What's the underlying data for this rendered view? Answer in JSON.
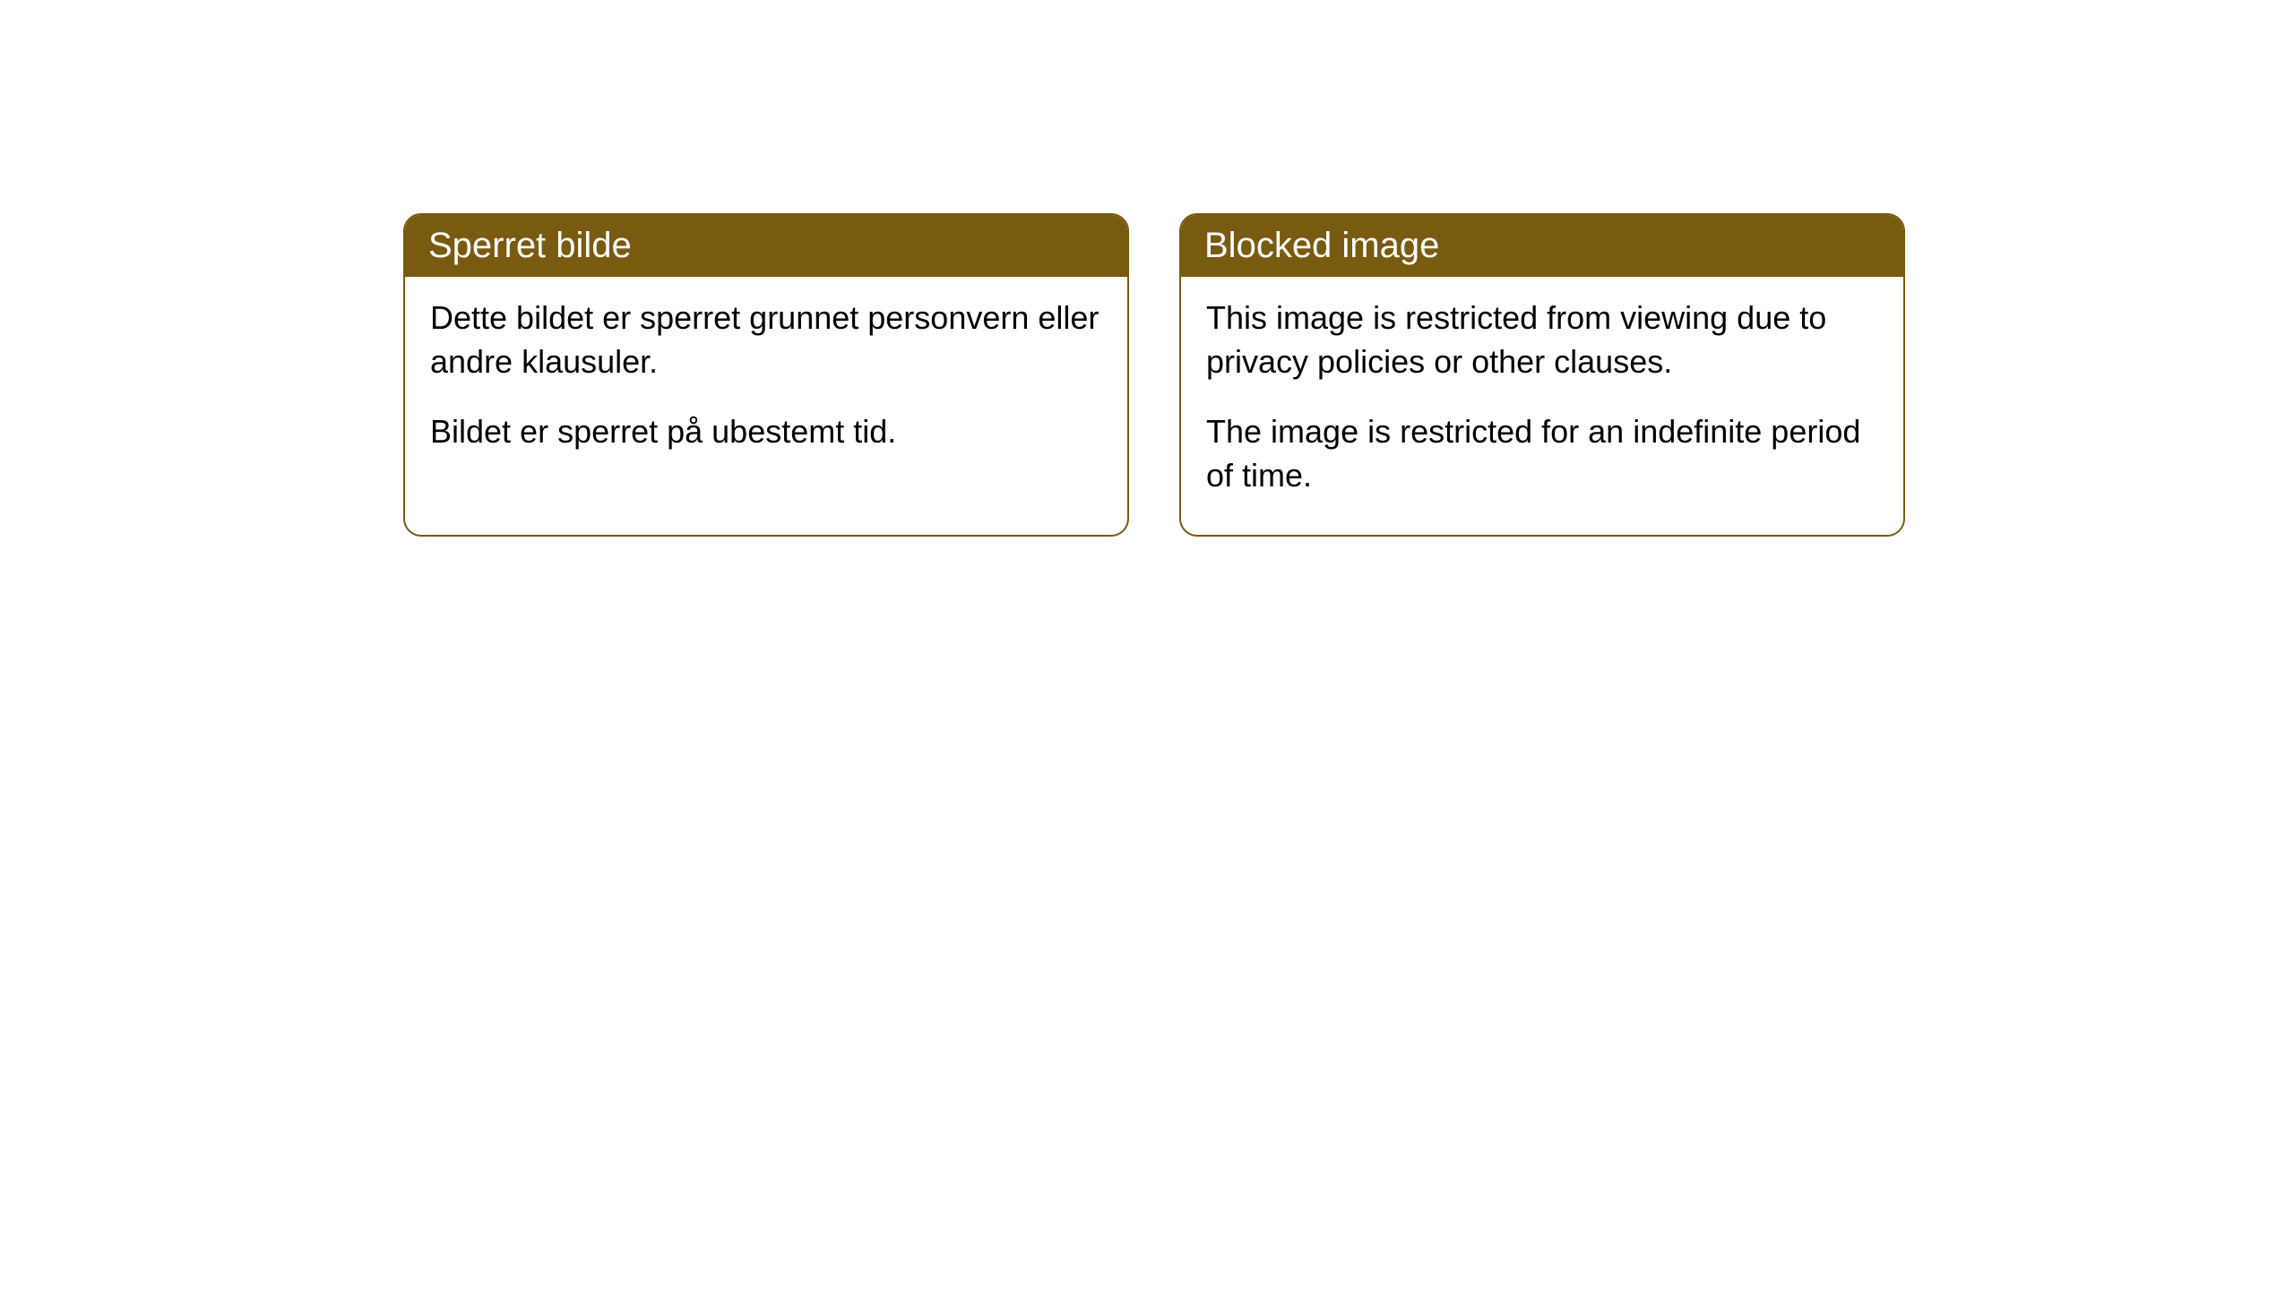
{
  "cards": [
    {
      "title": "Sperret bilde",
      "paragraph1": "Dette bildet er sperret grunnet personvern eller andre klausuler.",
      "paragraph2": "Bildet er sperret på ubestemt tid."
    },
    {
      "title": "Blocked image",
      "paragraph1": "This image is restricted from viewing due to privacy policies or other clauses.",
      "paragraph2": "The image is restricted for an indefinite period of time."
    }
  ],
  "styling": {
    "card_border_color": "#785a10",
    "card_header_bg": "#785a10",
    "card_header_text_color": "#ffffff",
    "card_body_bg": "#ffffff",
    "card_body_text_color": "#000000",
    "card_border_radius": 20,
    "header_font_size": 40,
    "body_font_size": 36,
    "page_bg": "#ffffff"
  }
}
